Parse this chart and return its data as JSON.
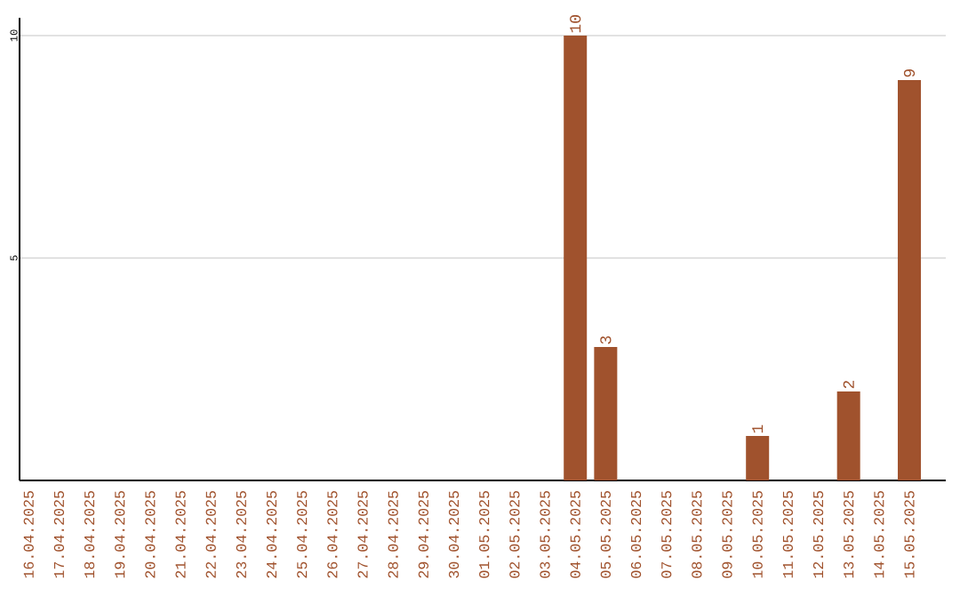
{
  "chart_data": {
    "type": "bar",
    "categories": [
      "16.04.2025",
      "17.04.2025",
      "18.04.2025",
      "19.04.2025",
      "20.04.2025",
      "21.04.2025",
      "22.04.2025",
      "23.04.2025",
      "24.04.2025",
      "25.04.2025",
      "26.04.2025",
      "27.04.2025",
      "28.04.2025",
      "29.04.2025",
      "30.04.2025",
      "01.05.2025",
      "02.05.2025",
      "03.05.2025",
      "04.05.2025",
      "05.05.2025",
      "06.05.2025",
      "07.05.2025",
      "08.05.2025",
      "09.05.2025",
      "10.05.2025",
      "11.05.2025",
      "12.05.2025",
      "13.05.2025",
      "14.05.2025",
      "15.05.2025"
    ],
    "values": [
      0,
      0,
      0,
      0,
      0,
      0,
      0,
      0,
      0,
      0,
      0,
      0,
      0,
      0,
      0,
      0,
      0,
      0,
      10,
      3,
      0,
      0,
      0,
      0,
      1,
      0,
      0,
      2,
      0,
      9
    ],
    "value_labels": [
      null,
      null,
      null,
      null,
      null,
      null,
      null,
      null,
      null,
      null,
      null,
      null,
      null,
      null,
      null,
      null,
      null,
      null,
      "10",
      "3",
      null,
      null,
      null,
      null,
      "1",
      null,
      null,
      "2",
      null,
      "9"
    ],
    "color": "#a0522d",
    "ylim": [
      0,
      10.4
    ],
    "yticks": [
      5,
      10
    ],
    "grid": "y"
  }
}
